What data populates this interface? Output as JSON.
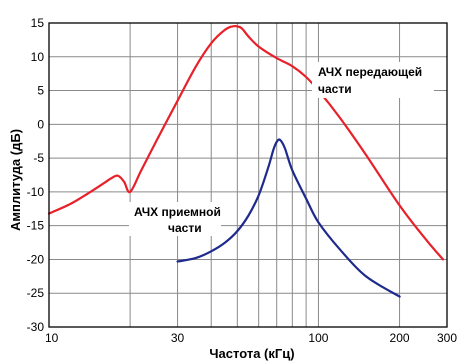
{
  "chart_data": {
    "type": "line",
    "xlabel": "Частота (кГц)",
    "ylabel": "Амплитуда (дБ)",
    "x_scale": "log",
    "xlim": [
      10,
      300
    ],
    "ylim": [
      -30,
      15
    ],
    "x_ticks": [
      10,
      30,
      100,
      200,
      300
    ],
    "y_ticks": [
      15,
      10,
      5,
      0,
      -5,
      -10,
      -15,
      -20,
      -25,
      -30
    ],
    "grid": true,
    "colors": {
      "transmit": "#e8202a",
      "receive": "#1e2a8c"
    },
    "series": [
      {
        "name": "transmit",
        "x": [
          10,
          12,
          14,
          16,
          17,
          18,
          19,
          20,
          22,
          25,
          30,
          35,
          40,
          45,
          48,
          50,
          52,
          55,
          60,
          70,
          80,
          90,
          100,
          120,
          150,
          200,
          250,
          290
        ],
        "y": [
          -13.2,
          -11.8,
          -10.2,
          -8.7,
          -8.0,
          -7.6,
          -8.5,
          -10.0,
          -6.8,
          -2.5,
          3.5,
          8.5,
          12.0,
          14.0,
          14.5,
          14.5,
          14.2,
          13.0,
          11.5,
          9.8,
          8.6,
          7.0,
          5.0,
          1.0,
          -4.5,
          -12.0,
          -17.0,
          -20.0
        ]
      },
      {
        "name": "receive",
        "x": [
          30,
          35,
          40,
          45,
          50,
          55,
          60,
          65,
          68,
          70,
          72,
          75,
          80,
          90,
          100,
          120,
          150,
          200
        ],
        "y": [
          -20.3,
          -19.8,
          -18.8,
          -17.5,
          -15.8,
          -13.5,
          -10.5,
          -6.5,
          -3.8,
          -2.6,
          -2.3,
          -3.5,
          -6.8,
          -11.0,
          -14.5,
          -18.5,
          -22.5,
          -25.5
        ]
      }
    ],
    "annotations": {
      "transmit": [
        "АЧХ передающей",
        "части"
      ],
      "receive": [
        "АЧХ приемной",
        "части"
      ]
    }
  }
}
